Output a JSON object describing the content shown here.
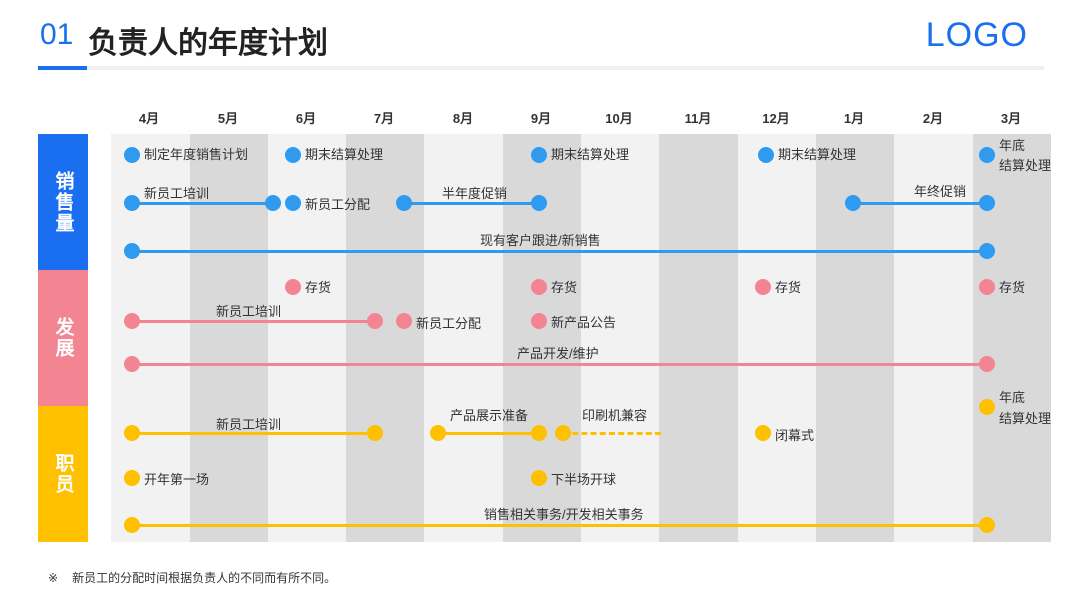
{
  "header": {
    "number": "01",
    "title": "负责人的年度计划",
    "logo": "LOGO"
  },
  "months": [
    "4月",
    "5月",
    "6月",
    "7月",
    "8月",
    "9月",
    "10月",
    "11月",
    "12月",
    "1月",
    "2月",
    "3月"
  ],
  "categories": [
    {
      "label": "销售量",
      "color": "#1a6ff0"
    },
    {
      "label": "发展",
      "color": "#f28591"
    },
    {
      "label": "职员",
      "color": "#ffc000"
    }
  ],
  "colors": {
    "blue": "#2e9bf0",
    "pink": "#f28591",
    "yellow": "#ffc000"
  },
  "sales": {
    "plan": "制定年度销售计划",
    "closing1": "期末结算处理",
    "closing2": "期末结算处理",
    "closing3": "期末结算处理",
    "year_end_closing_1": "年底",
    "year_end_closing_2": "结算处理",
    "new_staff_training": "新员工培训",
    "new_staff_assign": "新员工分配",
    "half_year_promo": "半年度促销",
    "year_end_promo": "年终促销",
    "customer_followup": "现有客户跟进/新销售"
  },
  "development": {
    "inventory1": "存货",
    "inventory2": "存货",
    "inventory3": "存货",
    "inventory4": "存货",
    "new_staff_training": "新员工培训",
    "new_staff_assign": "新员工分配",
    "new_product": "新产品公告",
    "product_dev": "产品开发/维护"
  },
  "staff": {
    "year_end_closing_1": "年底",
    "year_end_closing_2": "结算处理",
    "new_staff_training": "新员工培训",
    "exhibition_prep": "产品展示准备",
    "printer_compat": "印刷机兼容",
    "closing_ceremony": "闭幕式",
    "first_meeting": "开年第一场",
    "second_half_golf": "下半场开球",
    "sales_affairs": "销售相关事务/开发相关事务"
  },
  "footnote": {
    "mark": "※",
    "text": "新员工的分配时间根据负责人的不同而有所不同。"
  }
}
